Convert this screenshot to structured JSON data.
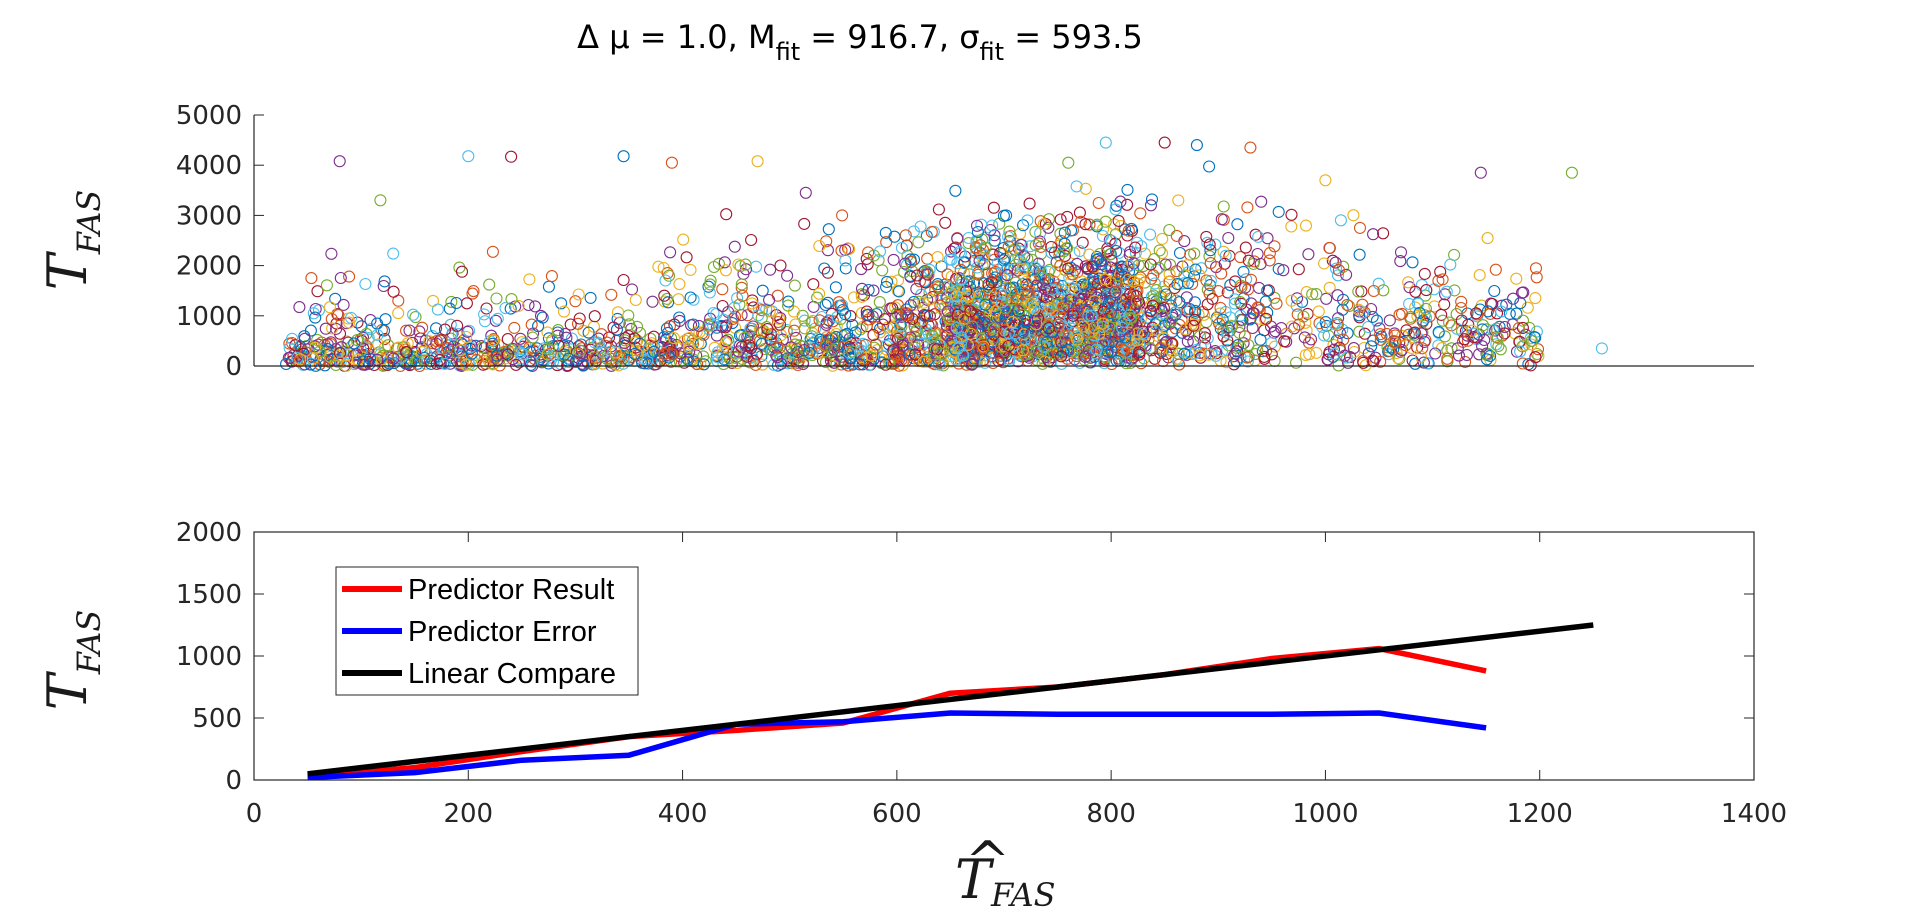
{
  "title": {
    "prefix": "Δ μ = 1.0, M",
    "m_sub": "fit",
    "mid": " = 916.7, σ",
    "s_sub": "fit",
    "suffix": " = 593.5"
  },
  "chart_data": [
    {
      "type": "scatter",
      "ylabel": {
        "main": "T",
        "sub": "FAS"
      },
      "xlim": [
        0,
        1400
      ],
      "ylim": [
        0,
        5000
      ],
      "yticks": [
        "0",
        "1000",
        "2000",
        "3000",
        "4000",
        "5000"
      ],
      "colors": [
        "#0072BD",
        "#D95319",
        "#EDB120",
        "#7E2F8E",
        "#77AC30",
        "#4DBEEE",
        "#A2142F"
      ],
      "marker": "open-circle",
      "series": [
        {
          "x": [
            30,
            42,
            55,
            80,
            118,
            200,
            240,
            345,
            390,
            470,
            515,
            760,
            795,
            850,
            880,
            930,
            1000,
            1145,
            1230,
            1258
          ],
          "y": [
            40,
            90,
            150,
            4080,
            3300,
            4180,
            4170,
            4180,
            4050,
            4080,
            3450,
            4050,
            4450,
            4450,
            4400,
            4350,
            3700,
            3850,
            3850,
            350
          ]
        }
      ]
    },
    {
      "type": "line",
      "ylabel": {
        "main": "T",
        "sub": "FAS"
      },
      "xlabel": {
        "main": "T",
        "hat": "^",
        "sub": "FAS"
      },
      "xlim": [
        0,
        1400
      ],
      "ylim": [
        0,
        2000
      ],
      "xticks": [
        "0",
        "200",
        "400",
        "600",
        "800",
        "1000",
        "1200",
        "1400"
      ],
      "yticks": [
        "0",
        "500",
        "1000",
        "1500",
        "2000"
      ],
      "series": [
        {
          "name": "Predictor Result",
          "color": "#FF0000",
          "x": [
            50,
            150,
            250,
            350,
            450,
            550,
            650,
            750,
            850,
            950,
            1050,
            1150
          ],
          "y": [
            30,
            100,
            230,
            350,
            400,
            460,
            700,
            750,
            850,
            980,
            1060,
            880
          ]
        },
        {
          "name": "Predictor Error",
          "color": "#0000FF",
          "x": [
            50,
            150,
            250,
            350,
            450,
            550,
            650,
            750,
            850,
            950,
            1050,
            1150
          ],
          "y": [
            20,
            60,
            160,
            200,
            450,
            470,
            540,
            530,
            530,
            530,
            540,
            420
          ]
        },
        {
          "name": "Linear Compare",
          "color": "#000000",
          "x": [
            50,
            1250
          ],
          "y": [
            50,
            1250
          ]
        }
      ],
      "legend": "top-left"
    }
  ]
}
